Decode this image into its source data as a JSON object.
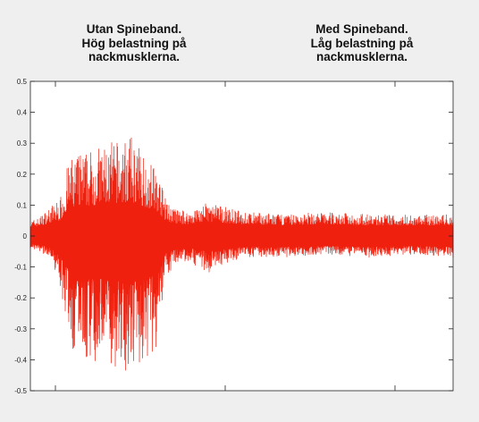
{
  "chart_data": {
    "type": "line",
    "title": "",
    "xlabel": "",
    "ylabel": "",
    "ylim": [
      -0.5,
      0.5
    ],
    "y_ticks": [
      "0.5",
      "0.4",
      "0.3",
      "0.2",
      "0.1",
      "0",
      "-0.1",
      "-0.2",
      "-0.3",
      "-0.4",
      "-0.5"
    ],
    "x_ticks": [
      "",
      "",
      ""
    ],
    "grid": false,
    "legend": "none",
    "annotations": [
      {
        "text": "Utan Spineband.\nHög belastning på\nnackmusklerna."
      },
      {
        "text": "Med Spineband.\nLåg belastning på\nnackmusklerna."
      }
    ],
    "series": [
      {
        "color": "#f0200e",
        "x": [
          0,
          0.02,
          0.05,
          0.07,
          0.09,
          0.11,
          0.14,
          0.18,
          0.24,
          0.3,
          0.32,
          0.34,
          0.37,
          0.42,
          0.5,
          0.6,
          0.7,
          0.8,
          0.9,
          1.0
        ],
        "max": [
          0.03,
          0.04,
          0.08,
          0.1,
          0.22,
          0.25,
          0.26,
          0.28,
          0.3,
          0.2,
          0.1,
          0.07,
          0.06,
          0.09,
          0.06,
          0.05,
          0.06,
          0.05,
          0.05,
          0.05
        ],
        "min": [
          -0.02,
          -0.03,
          -0.05,
          -0.15,
          -0.3,
          -0.42,
          -0.38,
          -0.4,
          -0.43,
          -0.35,
          -0.12,
          -0.08,
          -0.06,
          -0.1,
          -0.05,
          -0.05,
          -0.04,
          -0.05,
          -0.04,
          -0.05
        ]
      }
    ]
  },
  "colors": {
    "background": "#efefef",
    "plot_background": "#ffffff",
    "signal": "#f0200e"
  }
}
